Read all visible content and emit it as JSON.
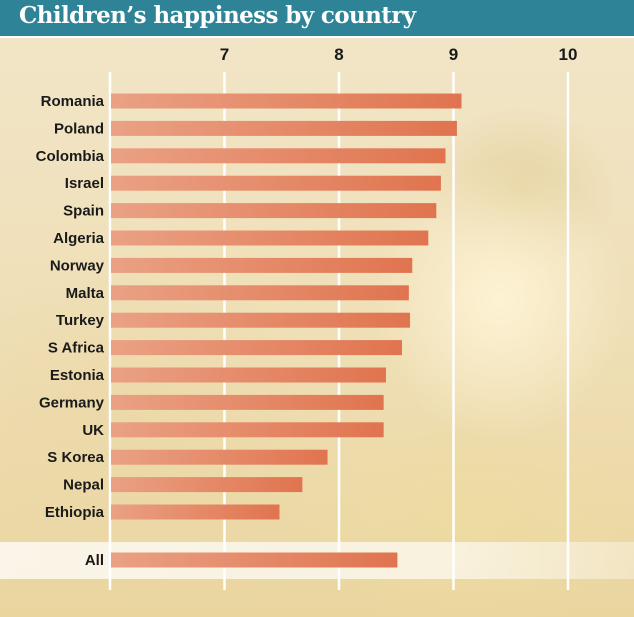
{
  "chart_data": {
    "type": "bar",
    "orientation": "horizontal",
    "title": "Children’s happiness by country",
    "xlabel": "",
    "ylabel": "",
    "xlim": [
      6,
      10.5
    ],
    "x_ticks": [
      7,
      8,
      9,
      10
    ],
    "grid": true,
    "categories": [
      "Romania",
      "Poland",
      "Colombia",
      "Israel",
      "Spain",
      "Algeria",
      "Norway",
      "Malta",
      "Turkey",
      "S Africa",
      "Estonia",
      "Germany",
      "UK",
      "S Korea",
      "Nepal",
      "Ethiopia"
    ],
    "values": [
      9.07,
      9.03,
      8.93,
      8.89,
      8.85,
      8.78,
      8.64,
      8.61,
      8.62,
      8.55,
      8.41,
      8.39,
      8.39,
      7.9,
      7.68,
      7.48
    ],
    "summary": {
      "label": "All",
      "value": 8.51
    },
    "colors": {
      "bar_start": "#eaa184",
      "bar_end": "#e0744f",
      "title_bar": "#2e8496",
      "gridline": "#ffffff"
    }
  }
}
